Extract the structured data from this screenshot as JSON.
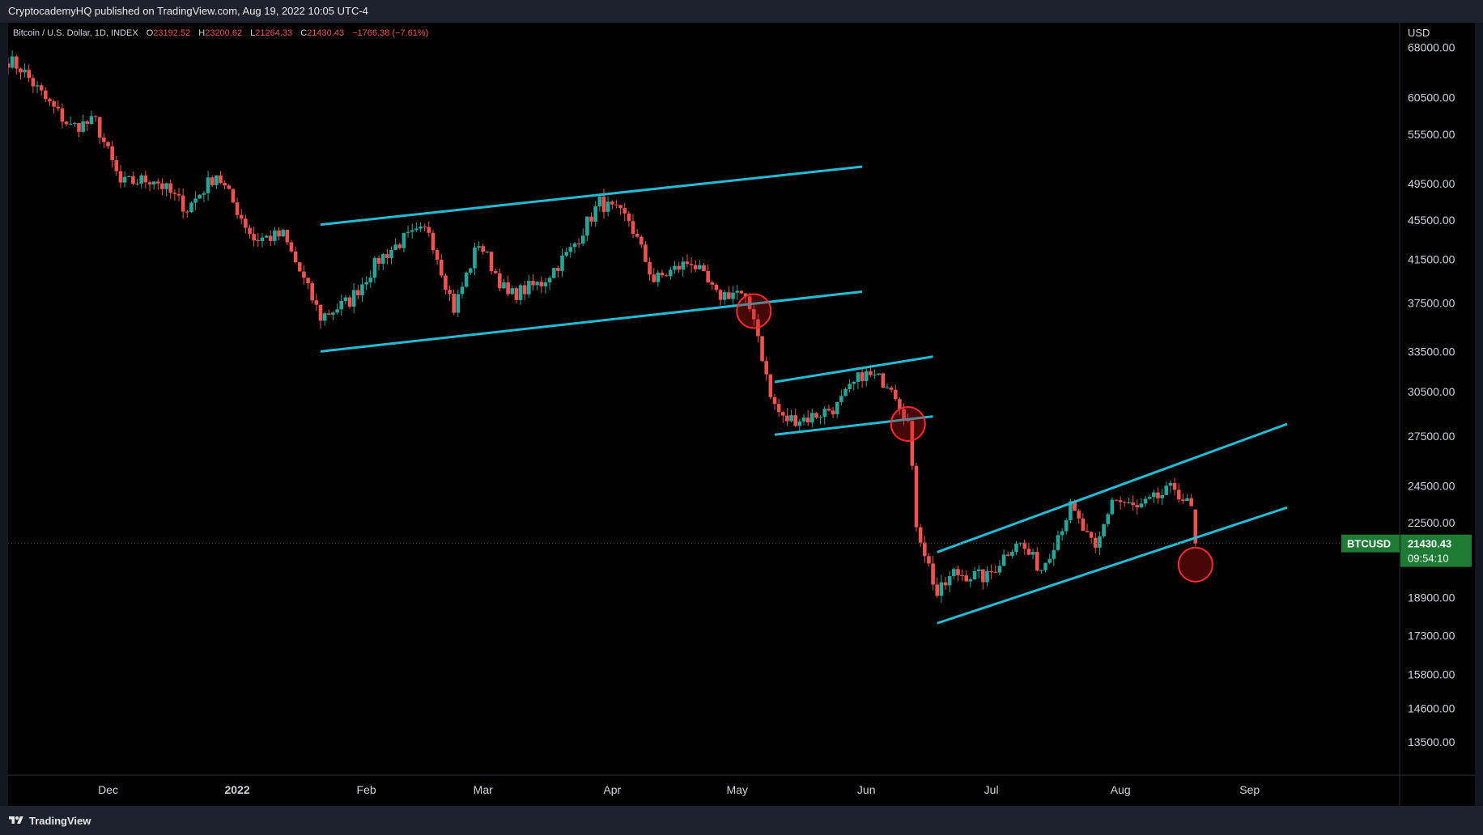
{
  "header": {
    "publisher_line": "CryptocademyHQ published on TradingView.com, Aug 19, 2022 10:05 UTC-4"
  },
  "legend": {
    "symbol": "Bitcoin / U.S. Dollar, 1D, INDEX",
    "o_label": "O",
    "open": "23192.52",
    "h_label": "H",
    "high": "23200.62",
    "l_label": "L",
    "low": "21264.33",
    "c_label": "C",
    "close": "21430.43",
    "change": "−1766.38 (−7.61%)"
  },
  "price_axis": {
    "currency": "USD",
    "ticks": [
      "68000.00",
      "60500.00",
      "55500.00",
      "49500.00",
      "45500.00",
      "41500.00",
      "37500.00",
      "33500.00",
      "30500.00",
      "27500.00",
      "24500.00",
      "22500.00",
      "18900.00",
      "17300.00",
      "15800.00",
      "14600.00",
      "13500.00"
    ]
  },
  "last_price": {
    "symbol": "BTCUSD",
    "price": "21430.43",
    "countdown": "09:54:10"
  },
  "time_axis": {
    "ticks": [
      {
        "label": "Dec",
        "date": "2021-12-01"
      },
      {
        "label": "2022",
        "date": "2022-01-01",
        "bold": true
      },
      {
        "label": "Feb",
        "date": "2022-02-01"
      },
      {
        "label": "Mar",
        "date": "2022-03-01"
      },
      {
        "label": "Apr",
        "date": "2022-04-01"
      },
      {
        "label": "May",
        "date": "2022-05-01"
      },
      {
        "label": "Jun",
        "date": "2022-06-01"
      },
      {
        "label": "Jul",
        "date": "2022-07-01"
      },
      {
        "label": "Aug",
        "date": "2022-08-01"
      },
      {
        "label": "Sep",
        "date": "2022-09-01"
      }
    ]
  },
  "footer": {
    "brand": "TradingView"
  },
  "colors": {
    "up": "#26a69a",
    "down": "#ef5350",
    "channel": "#22bcd6",
    "marker": "#ff2a2a",
    "badge": "#1e7b34"
  },
  "chart_data": {
    "type": "candlestick",
    "title": "Bitcoin / U.S. Dollar, 1D, INDEX",
    "yscale": "log",
    "ylim": [
      12500,
      72000
    ],
    "xlim": [
      "2021-11-07",
      "2022-10-07"
    ],
    "approx_close_path": [
      {
        "date": "2021-11-07",
        "close": 66000
      },
      {
        "date": "2021-11-10",
        "close": 64800
      },
      {
        "date": "2021-11-16",
        "close": 60200
      },
      {
        "date": "2021-11-22",
        "close": 56500
      },
      {
        "date": "2021-11-28",
        "close": 57200
      },
      {
        "date": "2021-12-04",
        "close": 49500
      },
      {
        "date": "2021-12-12",
        "close": 50100
      },
      {
        "date": "2021-12-20",
        "close": 46700
      },
      {
        "date": "2021-12-27",
        "close": 50700
      },
      {
        "date": "2022-01-05",
        "close": 43500
      },
      {
        "date": "2022-01-12",
        "close": 43900
      },
      {
        "date": "2022-01-21",
        "close": 36300
      },
      {
        "date": "2022-01-28",
        "close": 37700
      },
      {
        "date": "2022-02-04",
        "close": 41500
      },
      {
        "date": "2022-02-10",
        "close": 43500
      },
      {
        "date": "2022-02-16",
        "close": 44500
      },
      {
        "date": "2022-02-22",
        "close": 37000
      },
      {
        "date": "2022-02-28",
        "close": 43200
      },
      {
        "date": "2022-03-07",
        "close": 38100
      },
      {
        "date": "2022-03-15",
        "close": 39300
      },
      {
        "date": "2022-03-22",
        "close": 42400
      },
      {
        "date": "2022-03-29",
        "close": 47400
      },
      {
        "date": "2022-04-05",
        "close": 45500
      },
      {
        "date": "2022-04-11",
        "close": 39500
      },
      {
        "date": "2022-04-20",
        "close": 41400
      },
      {
        "date": "2022-04-26",
        "close": 38100
      },
      {
        "date": "2022-05-01",
        "close": 38500
      },
      {
        "date": "2022-05-05",
        "close": 36500
      },
      {
        "date": "2022-05-09",
        "close": 30100
      },
      {
        "date": "2022-05-12",
        "close": 28600
      },
      {
        "date": "2022-05-18",
        "close": 28700
      },
      {
        "date": "2022-05-25",
        "close": 29500
      },
      {
        "date": "2022-05-31",
        "close": 31800
      },
      {
        "date": "2022-06-07",
        "close": 31100
      },
      {
        "date": "2022-06-11",
        "close": 28400
      },
      {
        "date": "2022-06-13",
        "close": 22500
      },
      {
        "date": "2022-06-18",
        "close": 19000
      },
      {
        "date": "2022-06-22",
        "close": 20000
      },
      {
        "date": "2022-06-30",
        "close": 19800
      },
      {
        "date": "2022-07-07",
        "close": 21600
      },
      {
        "date": "2022-07-13",
        "close": 20200
      },
      {
        "date": "2022-07-20",
        "close": 23300
      },
      {
        "date": "2022-07-26",
        "close": 21000
      },
      {
        "date": "2022-07-30",
        "close": 23800
      },
      {
        "date": "2022-08-05",
        "close": 23200
      },
      {
        "date": "2022-08-14",
        "close": 24400
      },
      {
        "date": "2022-08-18",
        "close": 23200
      },
      {
        "date": "2022-08-19",
        "close": 21430.43
      }
    ],
    "last_candle": {
      "date": "2022-08-19",
      "open": 23192.52,
      "high": 23200.62,
      "low": 21264.33,
      "close": 21430.43
    },
    "annotations": {
      "channels": [
        {
          "upper": [
            {
              "date": "2022-01-21",
              "price": 45000
            },
            {
              "date": "2022-05-31",
              "price": 51500
            }
          ],
          "lower": [
            {
              "date": "2022-01-21",
              "price": 33500
            },
            {
              "date": "2022-05-31",
              "price": 38500
            }
          ]
        },
        {
          "upper": [
            {
              "date": "2022-05-10",
              "price": 31200
            },
            {
              "date": "2022-06-17",
              "price": 33100
            }
          ],
          "lower": [
            {
              "date": "2022-05-10",
              "price": 27600
            },
            {
              "date": "2022-06-17",
              "price": 28800
            }
          ]
        },
        {
          "upper": [
            {
              "date": "2022-06-18",
              "price": 21000
            },
            {
              "date": "2022-09-10",
              "price": 28300
            }
          ],
          "lower": [
            {
              "date": "2022-06-18",
              "price": 17800
            },
            {
              "date": "2022-09-10",
              "price": 23300
            }
          ]
        }
      ],
      "markers": [
        {
          "date": "2022-05-05",
          "price": 36800
        },
        {
          "date": "2022-06-11",
          "price": 28300
        },
        {
          "date": "2022-08-19",
          "price": 20400
        }
      ]
    }
  }
}
